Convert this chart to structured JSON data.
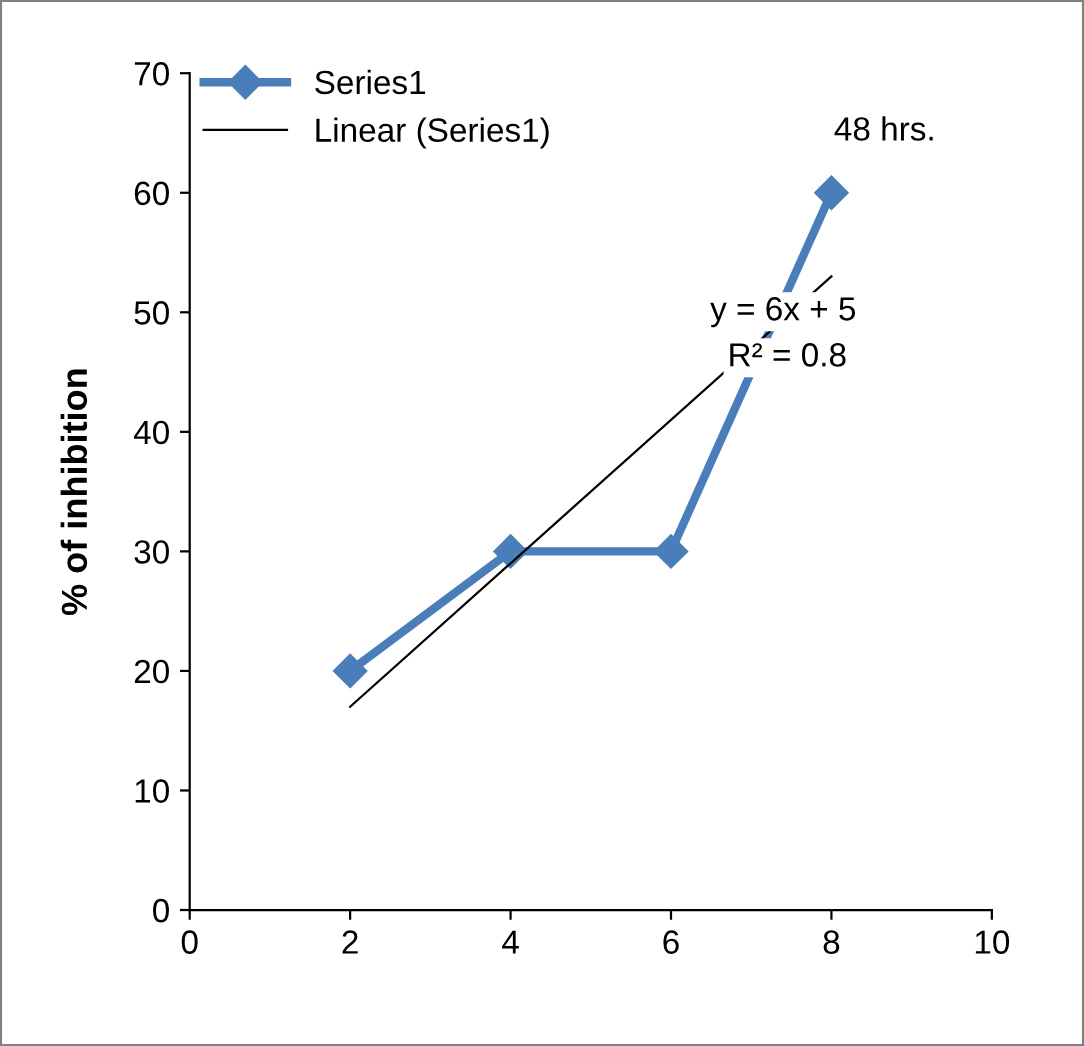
{
  "chart_data": {
    "type": "line",
    "ylabel": "% of inhibition",
    "x": [
      2,
      4,
      6,
      8
    ],
    "series": [
      {
        "name": "Series1",
        "color": "#4a7ebb",
        "values": [
          20,
          30,
          30,
          60
        ],
        "marker": "diamond",
        "line_style": "solid"
      },
      {
        "name": "Linear (Series1)",
        "color": "#000000",
        "x": [
          2,
          8
        ],
        "values": [
          17,
          53
        ],
        "marker": "none",
        "line_style": "solid"
      }
    ],
    "xlim": [
      0,
      10
    ],
    "xticks": [
      0,
      2,
      4,
      6,
      8,
      10
    ],
    "ylim": [
      0,
      70
    ],
    "yticks": [
      0,
      10,
      20,
      30,
      40,
      50,
      60,
      70
    ],
    "grid": false,
    "legend": "top left",
    "annotations": [
      "48 hrs.",
      "y = 6x + 5",
      "R² = 0.8"
    ]
  }
}
